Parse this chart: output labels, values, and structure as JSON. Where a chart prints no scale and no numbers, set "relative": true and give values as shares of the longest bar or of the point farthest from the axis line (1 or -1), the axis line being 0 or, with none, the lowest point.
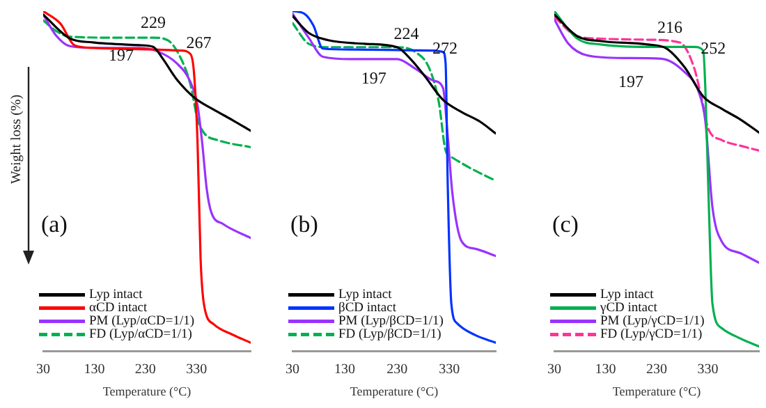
{
  "chart_data": [
    {
      "type": "line",
      "relative": true,
      "xlabel": "Temperature (°C)",
      "ylabel": "Weight loss (%)",
      "xlim": [
        30,
        436
      ],
      "xticks": [
        30,
        130,
        230,
        330
      ],
      "marker": "none",
      "legend": "bottom left",
      "annotations": [
        "(a)",
        "229",
        "267",
        "197"
      ],
      "series": [
        {
          "name": "Lyp intact",
          "color": "#000000",
          "line_style": "solid",
          "x": [
            30,
            82,
            127,
            218,
            245,
            264,
            291,
            327,
            364,
            400,
            436
          ],
          "values": [
            0.99,
            0.92,
            0.908,
            0.9,
            0.895,
            0.86,
            0.8,
            0.744,
            0.71,
            0.68,
            0.648
          ]
        },
        {
          "name": "αCD intact",
          "color": "#ff0000",
          "line_style": "solid",
          "x": [
            30,
            64,
            91,
            127,
            218,
            300,
            318,
            325,
            332,
            338,
            345,
            364,
            400,
            436
          ],
          "values": [
            1.0,
            0.963,
            0.9,
            0.892,
            0.888,
            0.884,
            0.874,
            0.82,
            0.614,
            0.271,
            0.134,
            0.079,
            0.049,
            0.025
          ]
        },
        {
          "name": "PM (Lyp/αCD=1/1)",
          "color": "#9933ff",
          "line_style": "solid",
          "x": [
            30,
            55,
            82,
            127,
            218,
            255,
            291,
            318,
            332,
            341,
            350,
            359,
            382,
            436
          ],
          "values": [
            0.99,
            0.929,
            0.897,
            0.892,
            0.892,
            0.881,
            0.847,
            0.792,
            0.723,
            0.614,
            0.477,
            0.408,
            0.374,
            0.333
          ]
        },
        {
          "name": "FD (Lyp/αCD=1/1)",
          "color": "#00b050",
          "line_style": "dashed",
          "x": [
            30,
            55,
            82,
            173,
            245,
            273,
            295,
            318,
            332,
            345,
            373,
            436
          ],
          "values": [
            0.973,
            0.942,
            0.925,
            0.922,
            0.922,
            0.915,
            0.874,
            0.785,
            0.682,
            0.641,
            0.62,
            0.6
          ]
        }
      ]
    },
    {
      "type": "line",
      "relative": true,
      "xlabel": "Temperature (°C)",
      "xlim": [
        30,
        419
      ],
      "xticks": [
        30,
        130,
        230,
        330
      ],
      "marker": "none",
      "legend": "bottom left",
      "annotations": [
        "(b)",
        "224",
        "272",
        "197"
      ],
      "series": [
        {
          "name": "Lyp intact",
          "color": "#000000",
          "line_style": "solid",
          "x": [
            30,
            61,
            97,
            168,
            230,
            256,
            283,
            318,
            354,
            389,
            419
          ],
          "values": [
            0.986,
            0.936,
            0.915,
            0.904,
            0.894,
            0.859,
            0.809,
            0.739,
            0.703,
            0.675,
            0.64
          ]
        },
        {
          "name": "βCD intact",
          "color": "#0033ff",
          "line_style": "solid",
          "x": [
            30,
            52,
            70,
            88,
            141,
            301,
            318,
            323,
            327,
            334,
            345,
            380,
            419
          ],
          "values": [
            1.0,
            0.993,
            0.958,
            0.89,
            0.887,
            0.884,
            0.88,
            0.845,
            0.492,
            0.138,
            0.082,
            0.047,
            0.025
          ]
        },
        {
          "name": "PM (Lyp/βCD=1/1)",
          "color": "#9933ff",
          "line_style": "solid",
          "x": [
            30,
            61,
            88,
            141,
            230,
            265,
            301,
            318,
            327,
            336,
            354,
            380,
            419
          ],
          "values": [
            0.993,
            0.922,
            0.866,
            0.859,
            0.859,
            0.831,
            0.795,
            0.774,
            0.633,
            0.463,
            0.322,
            0.301,
            0.28
          ]
        },
        {
          "name": "FD (Lyp/βCD=1/1)",
          "color": "#00b050",
          "line_style": "dashed",
          "x": [
            30,
            61,
            97,
            230,
            265,
            292,
            310,
            323,
            336,
            372,
            419
          ],
          "values": [
            0.965,
            0.904,
            0.894,
            0.894,
            0.88,
            0.831,
            0.732,
            0.59,
            0.569,
            0.537,
            0.501
          ]
        }
      ]
    },
    {
      "type": "line",
      "relative": true,
      "xlabel": "Temperature (°C)",
      "xlim": [
        30,
        430
      ],
      "xticks": [
        30,
        130,
        230,
        330
      ],
      "marker": "none",
      "legend": "bottom left",
      "annotations": [
        "(c)",
        "216",
        "252",
        "197"
      ],
      "series": [
        {
          "name": "Lyp intact",
          "color": "#000000",
          "line_style": "solid",
          "x": [
            30,
            75,
            121,
            212,
            248,
            285,
            321,
            357,
            394,
            430
          ],
          "values": [
            0.99,
            0.926,
            0.912,
            0.902,
            0.891,
            0.834,
            0.749,
            0.713,
            0.681,
            0.643
          ]
        },
        {
          "name": "γCD intact",
          "color": "#00b050",
          "line_style": "solid",
          "x": [
            30,
            75,
            121,
            212,
            303,
            321,
            325,
            332,
            339,
            357,
            394,
            430
          ],
          "values": [
            1.0,
            0.919,
            0.902,
            0.895,
            0.895,
            0.884,
            0.777,
            0.423,
            0.139,
            0.068,
            0.037,
            0.014
          ]
        },
        {
          "name": "PM (Lyp/γCD=1/1)",
          "color": "#9933ff",
          "line_style": "solid",
          "x": [
            30,
            57,
            94,
            166,
            239,
            285,
            312,
            325,
            339,
            357,
            394,
            430
          ],
          "values": [
            0.976,
            0.905,
            0.87,
            0.862,
            0.86,
            0.82,
            0.763,
            0.678,
            0.423,
            0.323,
            0.288,
            0.26
          ]
        },
        {
          "name": "FD (Lyp/γCD=1/1)",
          "color": "#ff3399",
          "line_style": "dashed",
          "x": [
            30,
            75,
            121,
            212,
            275,
            303,
            321,
            330,
            357,
            394,
            430
          ],
          "values": [
            0.983,
            0.926,
            0.919,
            0.916,
            0.908,
            0.834,
            0.721,
            0.657,
            0.621,
            0.604,
            0.59
          ]
        }
      ]
    }
  ]
}
